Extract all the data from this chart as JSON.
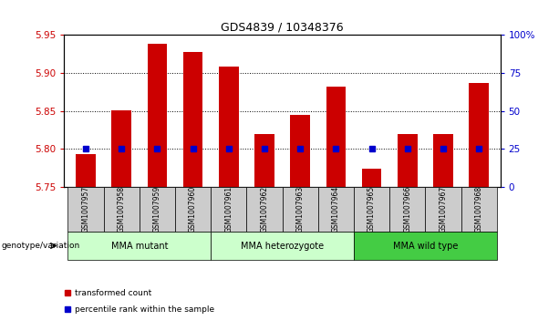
{
  "title": "GDS4839 / 10348376",
  "samples": [
    "GSM1007957",
    "GSM1007958",
    "GSM1007959",
    "GSM1007960",
    "GSM1007961",
    "GSM1007962",
    "GSM1007963",
    "GSM1007964",
    "GSM1007965",
    "GSM1007966",
    "GSM1007967",
    "GSM1007968"
  ],
  "transformed_counts": [
    5.793,
    5.851,
    5.938,
    5.927,
    5.908,
    5.82,
    5.845,
    5.882,
    5.774,
    5.82,
    5.82,
    5.887
  ],
  "percentile_values": [
    5.8,
    5.8,
    5.8,
    5.8,
    5.8,
    5.8,
    5.8,
    5.8,
    5.8,
    5.8,
    5.8,
    5.8
  ],
  "groups": [
    {
      "label": "MMA mutant",
      "start": 0,
      "end": 3,
      "color_light": "#ccffcc",
      "color_dark": "#ccffcc"
    },
    {
      "label": "MMA heterozygote",
      "start": 4,
      "end": 7,
      "color_light": "#ccffcc",
      "color_dark": "#ccffcc"
    },
    {
      "label": "MMA wild type",
      "start": 8,
      "end": 11,
      "color_light": "#44cc44",
      "color_dark": "#44cc44"
    }
  ],
  "ylim": [
    5.75,
    5.95
  ],
  "yticks": [
    5.75,
    5.8,
    5.85,
    5.9,
    5.95
  ],
  "right_yticks_pct": [
    0,
    25,
    50,
    75,
    100
  ],
  "bar_color": "#cc0000",
  "dot_color": "#0000cc",
  "bar_bottom": 5.75,
  "left_tick_color": "#cc0000",
  "right_tick_color": "#0000cc",
  "bg_color": "#cccccc",
  "plot_bg": "#ffffff",
  "genotype_label": "genotype/variation",
  "legend_items": [
    {
      "label": "transformed count",
      "color": "#cc0000"
    },
    {
      "label": "percentile rank within the sample",
      "color": "#0000cc"
    }
  ]
}
